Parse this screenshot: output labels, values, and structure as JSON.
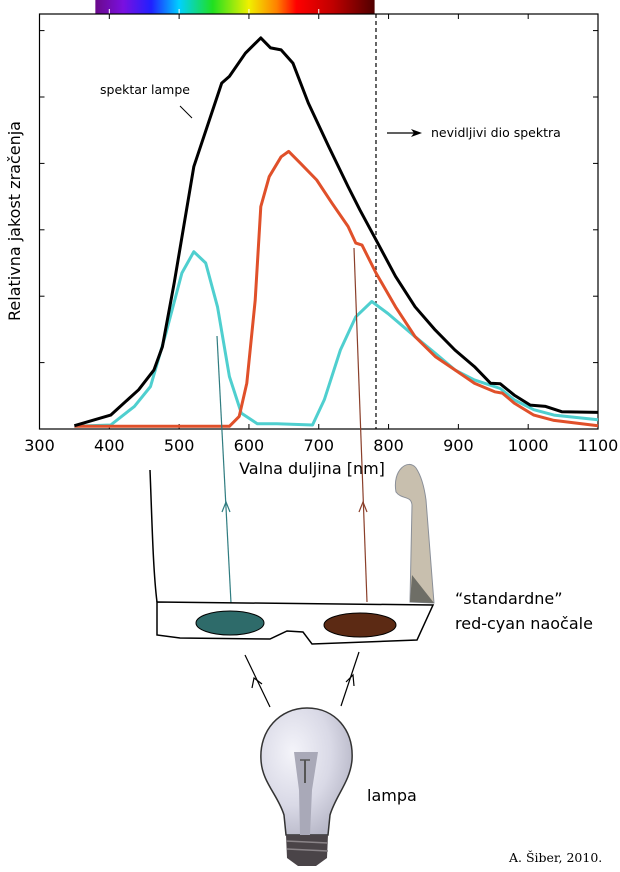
{
  "chart_data": {
    "type": "line",
    "title": "",
    "xlabel": "Valna duljina [nm]",
    "ylabel": "Relativna jakost zračenja",
    "xlim": [
      300,
      1100
    ],
    "ylim": [
      0,
      6.25
    ],
    "xticks": [
      300,
      400,
      500,
      600,
      700,
      800,
      900,
      1000,
      1100
    ],
    "yticks": [
      0,
      1,
      2,
      3,
      4,
      5,
      6
    ],
    "grid": false,
    "visible_spectrum_nm": [
      380,
      780
    ],
    "invisible_boundary_nm": 782,
    "series": [
      {
        "name": "spektar lampe",
        "color": "#000000",
        "x": [
          350,
          402,
          442,
          464,
          476,
          493,
          521,
          561,
          572,
          595,
          617,
          631,
          646,
          663,
          685,
          714,
          742,
          759,
          782,
          810,
          838,
          867,
          895,
          923,
          946,
          960,
          980,
          1003,
          1025,
          1048,
          1100
        ],
        "y": [
          0.05,
          0.21,
          0.59,
          0.89,
          1.24,
          2.2,
          3.95,
          5.21,
          5.31,
          5.66,
          5.89,
          5.74,
          5.71,
          5.51,
          4.91,
          4.26,
          3.65,
          3.3,
          2.85,
          2.3,
          1.84,
          1.49,
          1.19,
          0.94,
          0.69,
          0.68,
          0.51,
          0.36,
          0.34,
          0.26,
          0.25
        ]
      },
      {
        "name": "red filter",
        "color": "#e0502a",
        "x": [
          350,
          572,
          586,
          597,
          609,
          617,
          629,
          646,
          657,
          674,
          697,
          719,
          742,
          753,
          762,
          782,
          810,
          838,
          867,
          895,
          923,
          952,
          963,
          980,
          1008,
          1037,
          1100
        ],
        "y": [
          0.04,
          0.04,
          0.19,
          0.69,
          1.94,
          3.35,
          3.8,
          4.1,
          4.18,
          4.0,
          3.75,
          3.4,
          3.05,
          2.8,
          2.77,
          2.35,
          1.84,
          1.39,
          1.09,
          0.89,
          0.69,
          0.56,
          0.54,
          0.39,
          0.21,
          0.13,
          0.05
        ]
      },
      {
        "name": "cyan filter",
        "color": "#4fcfcf",
        "x": [
          350,
          402,
          436,
          459,
          481,
          504,
          521,
          538,
          555,
          572,
          589,
          612,
          640,
          691,
          708,
          731,
          753,
          776,
          799,
          838,
          867,
          895,
          923,
          960,
          980,
          1008,
          1037,
          1100
        ],
        "y": [
          0.04,
          0.06,
          0.34,
          0.64,
          1.44,
          2.35,
          2.67,
          2.5,
          1.84,
          0.79,
          0.24,
          0.08,
          0.08,
          0.06,
          0.44,
          1.19,
          1.69,
          1.92,
          1.74,
          1.39,
          1.14,
          0.89,
          0.74,
          0.61,
          0.44,
          0.29,
          0.21,
          0.14
        ]
      }
    ],
    "annotations": {
      "lamp_spectrum": "spektar lampe",
      "invisible": "nevidljivi dio spektra"
    }
  },
  "diagram": {
    "glasses_label_1": "“standardne”",
    "glasses_label_2": "red-cyan naočale",
    "lamp_label": "lampa",
    "credit": "A. Šiber, 2010.",
    "colors": {
      "cyan_lens": "#2e6b6a",
      "red_lens": "#5c2a14",
      "cyan_ray": "#2f7c80",
      "red_ray": "#8a3f2a"
    }
  }
}
